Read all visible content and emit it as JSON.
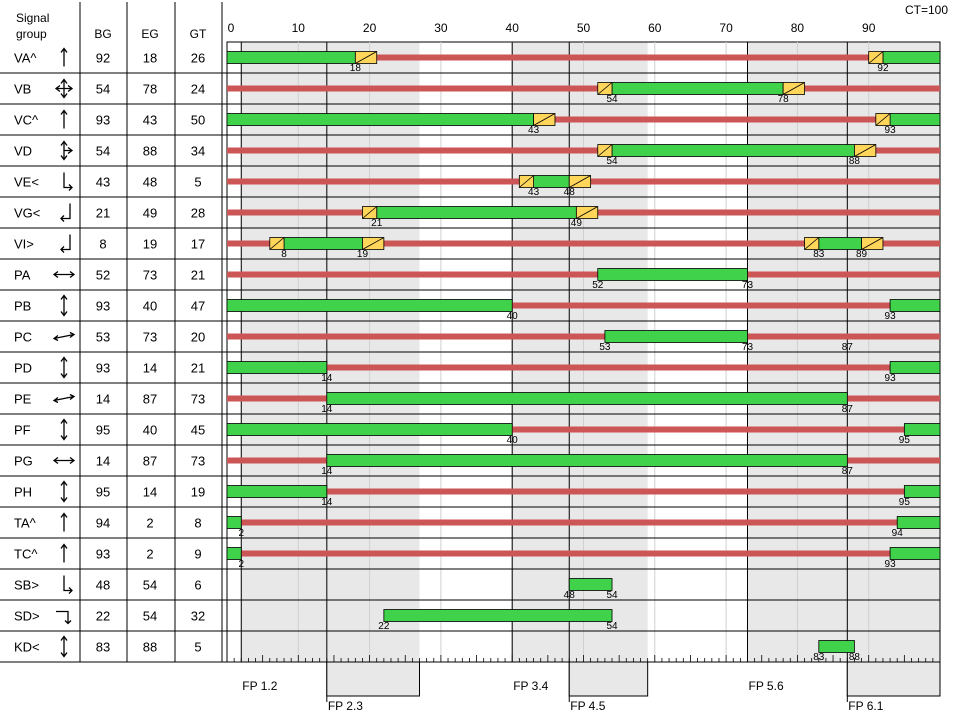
{
  "table": {
    "header_signal": "Signal",
    "header_group": "group",
    "col_bg": "BG",
    "col_eg": "EG",
    "col_gt": "GT"
  },
  "cycle_label": "CT=100",
  "colors": {
    "green": "#3fd24a",
    "red": "#cc5555",
    "amber": "#ffd55a",
    "fp_shade": "#e8e8e8",
    "grid": "#000000"
  },
  "chart_data": {
    "type": "signal-timing",
    "cycle_time": 100,
    "xlim": [
      0,
      100
    ],
    "x_ticks": [
      0,
      10,
      20,
      30,
      40,
      50,
      60,
      70,
      80,
      90
    ],
    "groups": [
      {
        "name": "VA^",
        "bg": 92,
        "eg": 18,
        "gt": 26,
        "icon": "straight-up-arrow-icon",
        "red": true,
        "green": [
          [
            0,
            18
          ],
          [
            92,
            100
          ]
        ],
        "amber": [
          [
            18,
            21
          ],
          [
            90,
            92
          ]
        ],
        "labels": [
          {
            "v": 18,
            "x": 18
          },
          {
            "v": 92,
            "x": 92
          }
        ]
      },
      {
        "name": "VB",
        "bg": 54,
        "eg": 78,
        "gt": 24,
        "icon": "four-way-arrow-icon",
        "red": true,
        "green": [
          [
            54,
            78
          ]
        ],
        "amber": [
          [
            78,
            81
          ],
          [
            52,
            54
          ]
        ],
        "labels": [
          {
            "v": 54,
            "x": 54
          },
          {
            "v": 78,
            "x": 78
          }
        ]
      },
      {
        "name": "VC^",
        "bg": 93,
        "eg": 43,
        "gt": 50,
        "icon": "straight-up-arrow-icon",
        "red": true,
        "green": [
          [
            0,
            43
          ],
          [
            93,
            100
          ]
        ],
        "amber": [
          [
            43,
            46
          ],
          [
            91,
            93
          ]
        ],
        "labels": [
          {
            "v": 43,
            "x": 43
          },
          {
            "v": 93,
            "x": 93
          }
        ]
      },
      {
        "name": "VD",
        "bg": 54,
        "eg": 88,
        "gt": 34,
        "icon": "three-way-arrow-icon",
        "red": true,
        "green": [
          [
            54,
            88
          ]
        ],
        "amber": [
          [
            88,
            91
          ],
          [
            52,
            54
          ]
        ],
        "labels": [
          {
            "v": 54,
            "x": 54
          },
          {
            "v": 88,
            "x": 88
          }
        ]
      },
      {
        "name": "VE<",
        "bg": 43,
        "eg": 48,
        "gt": 5,
        "icon": "turn-right-arrow-icon",
        "red": true,
        "green": [
          [
            43,
            48
          ]
        ],
        "amber": [
          [
            48,
            51
          ],
          [
            41,
            43
          ]
        ],
        "labels": [
          {
            "v": 43,
            "x": 43
          },
          {
            "v": 48,
            "x": 48
          }
        ]
      },
      {
        "name": "VG<",
        "bg": 21,
        "eg": 49,
        "gt": 28,
        "icon": "turn-left-arrow-icon",
        "red": true,
        "green": [
          [
            21,
            49
          ]
        ],
        "amber": [
          [
            49,
            52
          ],
          [
            19,
            21
          ]
        ],
        "labels": [
          {
            "v": 21,
            "x": 21
          },
          {
            "v": 49,
            "x": 49
          }
        ]
      },
      {
        "name": "VI>",
        "bg": 8,
        "eg": 19,
        "gt": 17,
        "icon": "turn-left-arrow-icon",
        "red": true,
        "green": [
          [
            8,
            19
          ],
          [
            83,
            89
          ]
        ],
        "amber": [
          [
            19,
            22
          ],
          [
            6,
            8
          ],
          [
            89,
            92
          ],
          [
            81,
            83
          ]
        ],
        "labels": [
          {
            "v": 8,
            "x": 8
          },
          {
            "v": 19,
            "x": 19
          },
          {
            "v": 83,
            "x": 83
          },
          {
            "v": 89,
            "x": 89
          }
        ]
      },
      {
        "name": "PA",
        "bg": 52,
        "eg": 73,
        "gt": 21,
        "icon": "horizontal-arrow-icon",
        "red": true,
        "green": [
          [
            52,
            73
          ]
        ],
        "amber": [],
        "labels": [
          {
            "v": 52,
            "x": 52
          },
          {
            "v": 73,
            "x": 73
          }
        ]
      },
      {
        "name": "PB",
        "bg": 93,
        "eg": 40,
        "gt": 47,
        "icon": "vertical-arrow-icon",
        "red": true,
        "green": [
          [
            0,
            40
          ],
          [
            93,
            100
          ]
        ],
        "amber": [],
        "labels": [
          {
            "v": 40,
            "x": 40
          },
          {
            "v": 93,
            "x": 93
          }
        ]
      },
      {
        "name": "PC",
        "bg": 53,
        "eg": 73,
        "gt": 20,
        "icon": "diagonal-arrow-icon",
        "red": true,
        "green": [
          [
            53,
            73
          ]
        ],
        "amber": [],
        "labels": [
          {
            "v": 53,
            "x": 53
          },
          {
            "v": 73,
            "x": 73
          },
          {
            "v": 87,
            "x": 87
          }
        ]
      },
      {
        "name": "PD",
        "bg": 93,
        "eg": 14,
        "gt": 21,
        "icon": "vertical-arrow-icon",
        "red": true,
        "green": [
          [
            0,
            14
          ],
          [
            93,
            100
          ]
        ],
        "amber": [],
        "labels": [
          {
            "v": 14,
            "x": 14
          },
          {
            "v": 93,
            "x": 93
          }
        ]
      },
      {
        "name": "PE",
        "bg": 14,
        "eg": 87,
        "gt": 73,
        "icon": "diagonal-arrow-icon",
        "red": true,
        "green": [
          [
            14,
            87
          ]
        ],
        "amber": [],
        "labels": [
          {
            "v": 14,
            "x": 14
          },
          {
            "v": 87,
            "x": 87
          }
        ]
      },
      {
        "name": "PF",
        "bg": 95,
        "eg": 40,
        "gt": 45,
        "icon": "vertical-arrow-icon",
        "red": true,
        "green": [
          [
            0,
            40
          ],
          [
            95,
            100
          ]
        ],
        "amber": [],
        "labels": [
          {
            "v": 40,
            "x": 40
          },
          {
            "v": 95,
            "x": 95
          }
        ]
      },
      {
        "name": "PG",
        "bg": 14,
        "eg": 87,
        "gt": 73,
        "icon": "horizontal-arrow-icon",
        "red": true,
        "green": [
          [
            14,
            87
          ]
        ],
        "amber": [],
        "labels": [
          {
            "v": 14,
            "x": 14
          },
          {
            "v": 87,
            "x": 87
          }
        ]
      },
      {
        "name": "PH",
        "bg": 95,
        "eg": 14,
        "gt": 19,
        "icon": "vertical-arrow-icon",
        "red": true,
        "green": [
          [
            0,
            14
          ],
          [
            95,
            100
          ]
        ],
        "amber": [],
        "labels": [
          {
            "v": 14,
            "x": 14
          },
          {
            "v": 95,
            "x": 95
          }
        ]
      },
      {
        "name": "TA^",
        "bg": 94,
        "eg": 2,
        "gt": 8,
        "icon": "straight-up-arrow-icon",
        "red": true,
        "green": [
          [
            0,
            2
          ],
          [
            94,
            100
          ]
        ],
        "amber": [],
        "labels": [
          {
            "v": 2,
            "x": 2
          },
          {
            "v": 94,
            "x": 94
          }
        ]
      },
      {
        "name": "TC^",
        "bg": 93,
        "eg": 2,
        "gt": 9,
        "icon": "straight-up-arrow-icon",
        "red": true,
        "green": [
          [
            0,
            2
          ],
          [
            93,
            100
          ]
        ],
        "amber": [],
        "labels": [
          {
            "v": 2,
            "x": 2
          },
          {
            "v": 93,
            "x": 93
          }
        ]
      },
      {
        "name": "SB>",
        "bg": 48,
        "eg": 54,
        "gt": 6,
        "icon": "turn-right-arrow-icon",
        "red": false,
        "green": [
          [
            48,
            54
          ]
        ],
        "amber": [],
        "labels": [
          {
            "v": 48,
            "x": 48
          },
          {
            "v": 54,
            "x": 54
          }
        ]
      },
      {
        "name": "SD>",
        "bg": 22,
        "eg": 54,
        "gt": 32,
        "icon": "turn-down-arrow-icon",
        "red": false,
        "green": [
          [
            22,
            54
          ]
        ],
        "amber": [],
        "labels": [
          {
            "v": 22,
            "x": 22
          },
          {
            "v": 54,
            "x": 54
          }
        ]
      },
      {
        "name": "KD<",
        "bg": 83,
        "eg": 88,
        "gt": 5,
        "icon": "vertical-arrow-icon",
        "red": false,
        "green": [
          [
            83,
            88
          ]
        ],
        "amber": [],
        "labels": [
          {
            "v": 83,
            "x": 83
          },
          {
            "v": 88,
            "x": 88
          }
        ]
      }
    ],
    "fixed_points": [
      {
        "label": "FP 1.2",
        "at": 2,
        "shade": [
          2,
          14
        ],
        "row": 1
      },
      {
        "label": "FP 2.3",
        "at": 14,
        "shade": [
          14,
          27
        ],
        "row": 2
      },
      {
        "label": "FP 3.4",
        "at": 40,
        "shade": [
          40,
          48
        ],
        "row": 1
      },
      {
        "label": "FP 4.5",
        "at": 48,
        "shade": [
          48,
          59
        ],
        "row": 2
      },
      {
        "label": "FP 5.6",
        "at": 73,
        "shade": [
          73,
          87
        ],
        "row": 1
      },
      {
        "label": "FP 6.1",
        "at": 87,
        "shade": [
          87,
          100
        ],
        "row": 2
      }
    ]
  }
}
